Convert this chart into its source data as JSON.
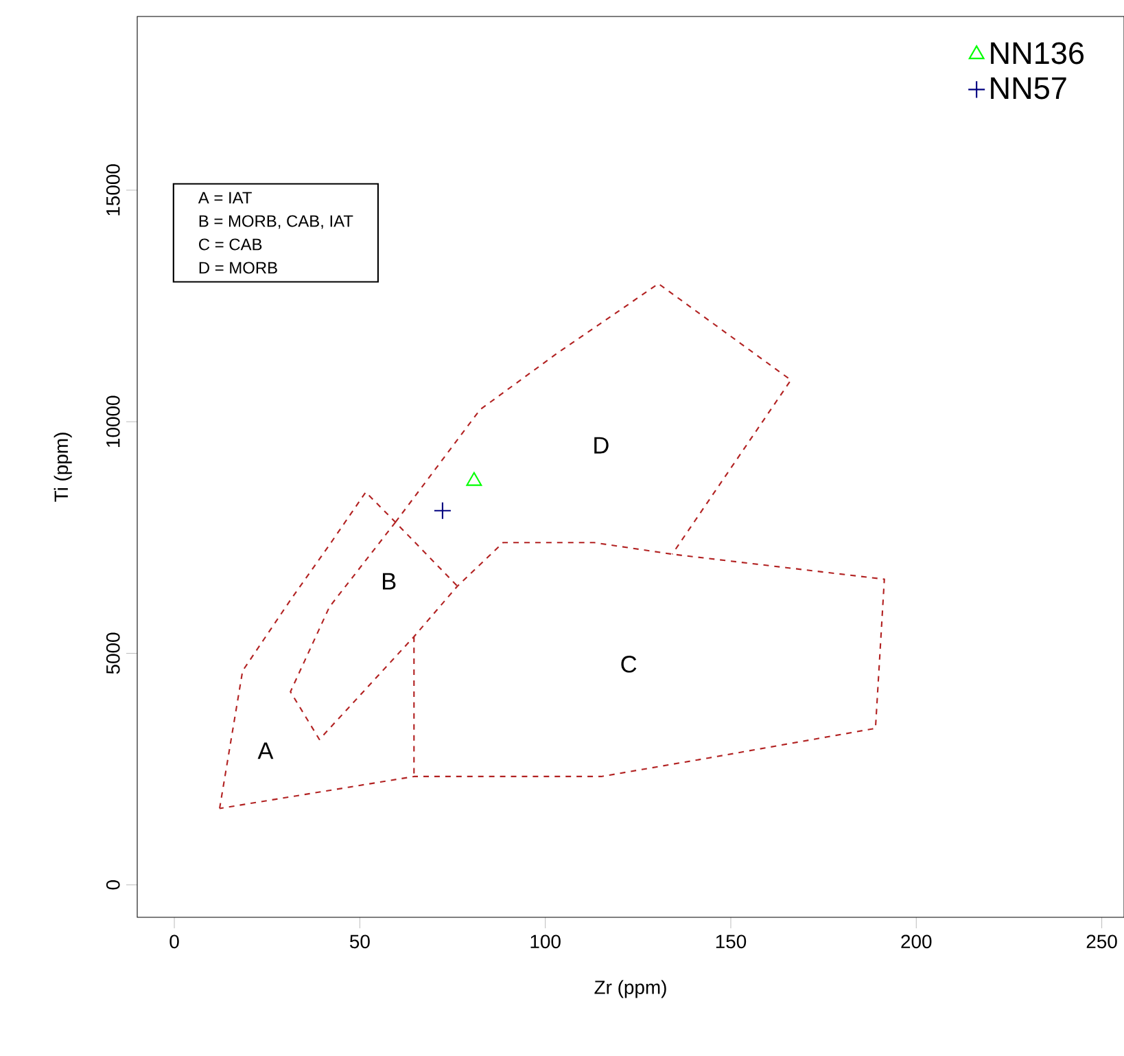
{
  "chart_data": {
    "type": "scatter",
    "xlabel": "Zr (ppm)",
    "ylabel": "Ti (ppm)",
    "xlim": [
      -10,
      256
    ],
    "ylim": [
      -700,
      18750
    ],
    "xticks": [
      0,
      50,
      100,
      150,
      200,
      250
    ],
    "yticks": [
      0,
      5000,
      10000,
      15000
    ],
    "grid": false,
    "legend": "top right",
    "annotations": [
      "A = IAT",
      "B = MORB, CAB, IAT",
      "C = CAB",
      "D = MORB",
      "A",
      "B",
      "C",
      "D"
    ],
    "series": [
      {
        "type": "line",
        "color": "#b22222",
        "line_style": "dashed",
        "marker": "none",
        "x": [
          12.2,
          18.4,
          31.3,
          41.8,
          51.6,
          59.6,
          76.3,
          null,
          59.6,
          41.8,
          31.3,
          39.1,
          64.6,
          76.3,
          88.6,
          113.2,
          134.2,
          164.9,
          191.4,
          189,
          144,
          115.1,
          64.6,
          12.2,
          null,
          64.6,
          64.6,
          null,
          59.6,
          82.4,
          103.4,
          130.5,
          166.2,
          134.2
        ],
        "values": [
          1650,
          4620,
          6150,
          7340,
          8480,
          7830,
          6450,
          null,
          7830,
          6000,
          4170,
          3140,
          5360,
          6450,
          7390,
          7390,
          7140,
          6850,
          6600,
          3380,
          2740,
          2340,
          2340,
          1650,
          null,
          5360,
          2340,
          null,
          7830,
          10260,
          11490,
          12980,
          10900,
          7140
        ]
      },
      {
        "name": "NN136",
        "color": "#00ff00",
        "marker": "triangle",
        "x": [
          80.8
        ],
        "values": [
          8720
        ]
      },
      {
        "name": "NN57",
        "color": "#000080",
        "marker": "cross",
        "x": [
          72.3
        ],
        "values": [
          8080
        ]
      }
    ]
  }
}
